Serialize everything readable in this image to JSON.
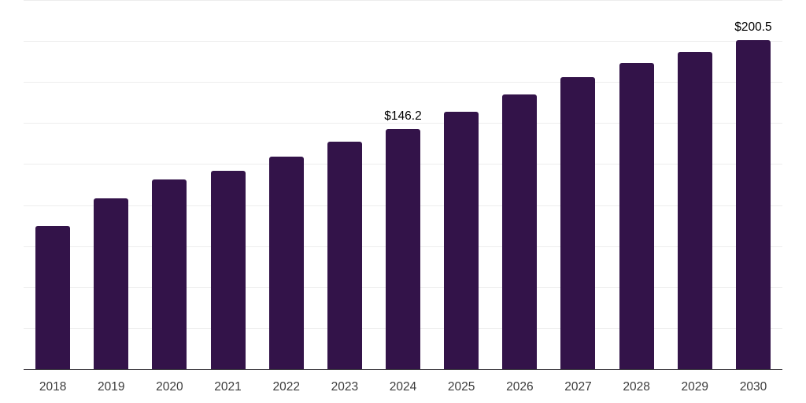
{
  "chart_data": {
    "type": "bar",
    "title": "",
    "categories": [
      "2018",
      "2019",
      "2020",
      "2021",
      "2022",
      "2023",
      "2024",
      "2025",
      "2026",
      "2027",
      "2028",
      "2029",
      "2030"
    ],
    "values": [
      86.9,
      104.0,
      115.2,
      120.7,
      129.3,
      138.6,
      146.2,
      156.5,
      167.3,
      177.6,
      186.4,
      193.0,
      200.5
    ],
    "data_labels": {
      "2024": "$146.2",
      "2030": "$200.5"
    },
    "ylim": [
      0,
      225
    ],
    "gridline_step": 25,
    "grid": "horizontal-only",
    "y_axis_labels": "none",
    "legend": "none",
    "colors": {
      "bar": "#331349",
      "gridline": "#ededed",
      "axis_line": "#3d3a40",
      "tick_label": "#3b3b3b",
      "value_label": "#000000",
      "background": "#ffffff"
    }
  }
}
